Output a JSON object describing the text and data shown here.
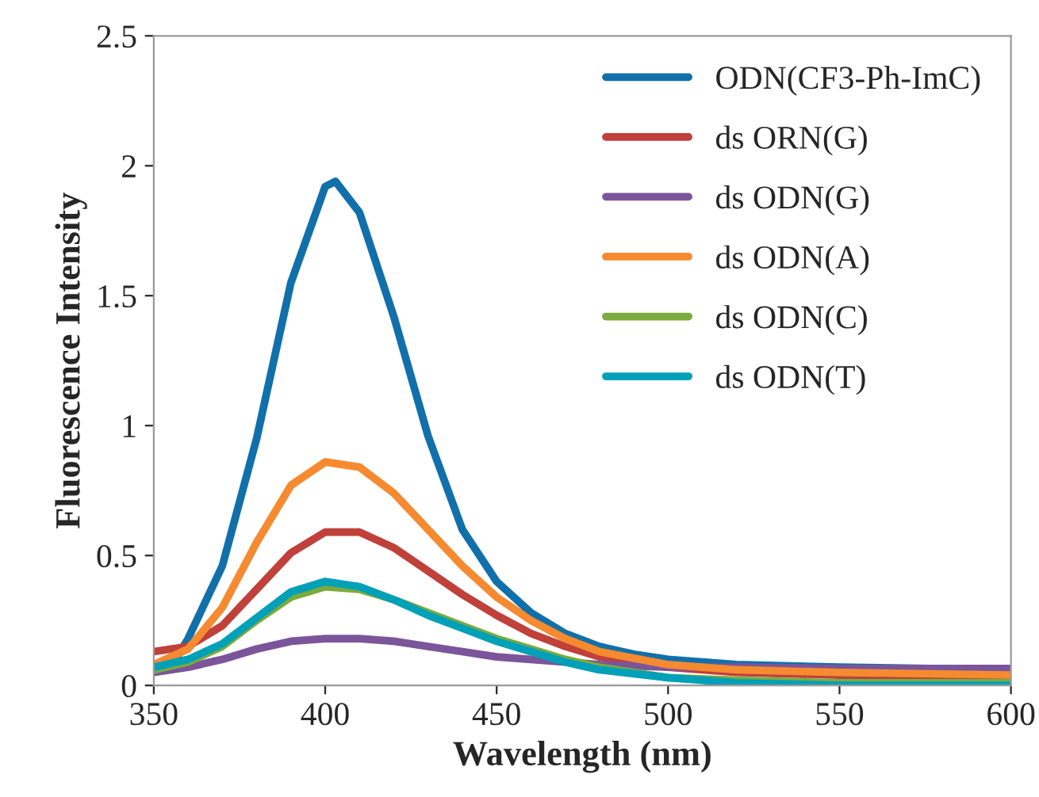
{
  "chart_data": {
    "type": "line",
    "xlabel": "Wavelength (nm)",
    "ylabel": "Fluorescence Intensity",
    "xlim": [
      350,
      600
    ],
    "xticks": [
      350,
      400,
      450,
      500,
      550,
      600
    ],
    "ylim": [
      0,
      2.5
    ],
    "yticks": [
      0,
      0.5,
      1,
      1.5,
      2,
      2.5
    ],
    "grid": false,
    "legend": "top right",
    "marker": "none",
    "line_style": "solid",
    "series": [
      {
        "name": "ODN(CF3-Ph-ImC)",
        "color": "#1170aa",
        "x": [
          355,
          360,
          370,
          380,
          390,
          400,
          403,
          410,
          420,
          430,
          440,
          450,
          460,
          470,
          480,
          490,
          500,
          520,
          550,
          600
        ],
        "values": [
          0.07,
          0.18,
          0.46,
          0.95,
          1.55,
          1.92,
          1.94,
          1.82,
          1.42,
          0.96,
          0.6,
          0.4,
          0.28,
          0.2,
          0.15,
          0.12,
          0.1,
          0.08,
          0.07,
          0.06
        ]
      },
      {
        "name": "ds ORN(G)",
        "color": "#c0403a",
        "x": [
          350,
          360,
          370,
          380,
          390,
          400,
          410,
          420,
          430,
          440,
          450,
          460,
          470,
          480,
          500,
          520,
          550,
          600
        ],
        "values": [
          0.13,
          0.15,
          0.23,
          0.37,
          0.51,
          0.59,
          0.59,
          0.53,
          0.44,
          0.35,
          0.27,
          0.2,
          0.15,
          0.11,
          0.07,
          0.05,
          0.04,
          0.03
        ]
      },
      {
        "name": "ds ODN(G)",
        "color": "#7b559a",
        "x": [
          350,
          360,
          370,
          380,
          390,
          400,
          410,
          420,
          430,
          440,
          450,
          460,
          470,
          480,
          500,
          520,
          550,
          600
        ],
        "values": [
          0.05,
          0.07,
          0.1,
          0.14,
          0.17,
          0.18,
          0.18,
          0.17,
          0.15,
          0.13,
          0.11,
          0.1,
          0.09,
          0.08,
          0.07,
          0.07,
          0.065,
          0.065
        ]
      },
      {
        "name": "ds ODN(A)",
        "color": "#f58a30",
        "x": [
          350,
          360,
          370,
          380,
          390,
          400,
          410,
          420,
          430,
          440,
          450,
          460,
          470,
          480,
          500,
          520,
          550,
          600
        ],
        "values": [
          0.08,
          0.14,
          0.3,
          0.55,
          0.77,
          0.86,
          0.84,
          0.74,
          0.6,
          0.46,
          0.34,
          0.25,
          0.18,
          0.13,
          0.08,
          0.06,
          0.05,
          0.04
        ]
      },
      {
        "name": "ds ODN(C)",
        "color": "#7aab3c",
        "x": [
          350,
          360,
          370,
          380,
          390,
          400,
          410,
          420,
          430,
          440,
          450,
          460,
          470,
          480,
          500,
          520,
          550,
          600
        ],
        "values": [
          0.06,
          0.09,
          0.15,
          0.25,
          0.34,
          0.38,
          0.37,
          0.33,
          0.28,
          0.23,
          0.18,
          0.14,
          0.1,
          0.07,
          0.03,
          0.02,
          0.01,
          0.01
        ]
      },
      {
        "name": "ds ODN(T)",
        "color": "#00a0b8",
        "x": [
          350,
          360,
          370,
          380,
          390,
          400,
          410,
          420,
          430,
          440,
          450,
          460,
          470,
          480,
          500,
          520,
          550,
          600
        ],
        "values": [
          0.07,
          0.1,
          0.16,
          0.26,
          0.36,
          0.4,
          0.38,
          0.33,
          0.27,
          0.22,
          0.17,
          0.13,
          0.09,
          0.06,
          0.03,
          0.01,
          0.0,
          0.0
        ]
      }
    ]
  }
}
